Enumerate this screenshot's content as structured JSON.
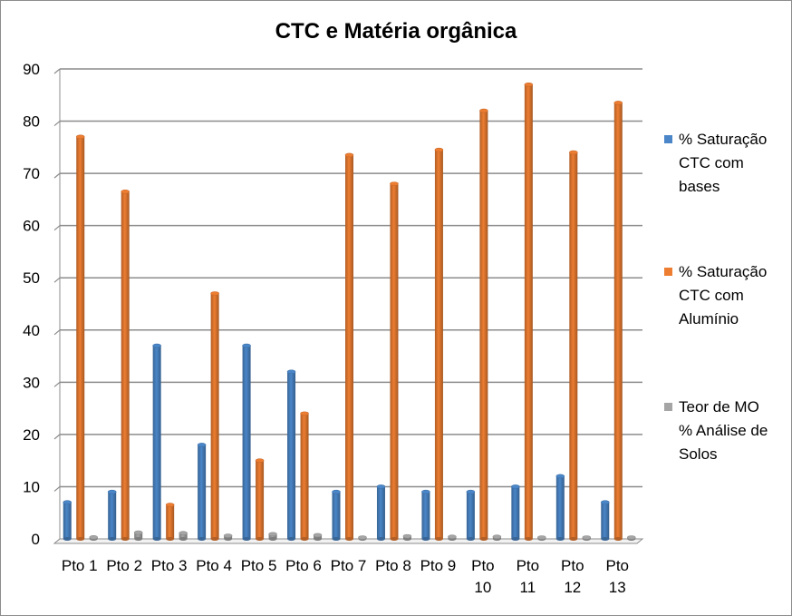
{
  "chart_data": {
    "type": "bar",
    "title": "CTC e Matéria orgânica",
    "xlabel": "",
    "ylabel": "",
    "ylim": [
      0,
      90
    ],
    "yticks": [
      0,
      10,
      20,
      30,
      40,
      50,
      60,
      70,
      80,
      90
    ],
    "grid": true,
    "legend_position": "right",
    "categories": [
      "Pto 1",
      "Pto 2",
      "Pto 3",
      "Pto 4",
      "Pto 5",
      "Pto 6",
      "Pto 7",
      "Pto 8",
      "Pto 9",
      "Pto 10",
      "Pto 11",
      "Pto 12",
      "Pto 13"
    ],
    "category_lines": [
      [
        "Pto 1"
      ],
      [
        "Pto 2"
      ],
      [
        "Pto 3"
      ],
      [
        "Pto 4"
      ],
      [
        "Pto 5"
      ],
      [
        "Pto 6"
      ],
      [
        "Pto 7"
      ],
      [
        "Pto 8"
      ],
      [
        "Pto 9"
      ],
      [
        "Pto",
        "10"
      ],
      [
        "Pto",
        "11"
      ],
      [
        "Pto",
        "12"
      ],
      [
        "Pto",
        "13"
      ]
    ],
    "series": [
      {
        "name": "% Saturação CTC com bases",
        "legend_lines": [
          "% Saturação",
          "CTC com",
          "bases"
        ],
        "color": "#4a86c8",
        "values": [
          7,
          9,
          37,
          18,
          37,
          32,
          9,
          10,
          9,
          9,
          10,
          12,
          7
        ]
      },
      {
        "name": "% Saturação CTC com Alumínio",
        "legend_lines": [
          "% Saturação",
          "CTC com",
          "Alumínio"
        ],
        "color": "#ed7d31",
        "values": [
          77,
          66.5,
          6.5,
          47,
          15,
          24,
          73.5,
          68,
          74.5,
          82,
          87,
          74,
          83.5
        ]
      },
      {
        "name": "Teor de MO % Análise de Solos",
        "legend_lines": [
          "Teor de MO",
          "% Análise de",
          "Solos"
        ],
        "color": "#a5a5a5",
        "values": [
          0.3,
          1.2,
          1.1,
          0.6,
          0.9,
          0.7,
          0.2,
          0.5,
          0.4,
          0.4,
          0.1,
          0.1,
          0.1
        ]
      }
    ]
  }
}
